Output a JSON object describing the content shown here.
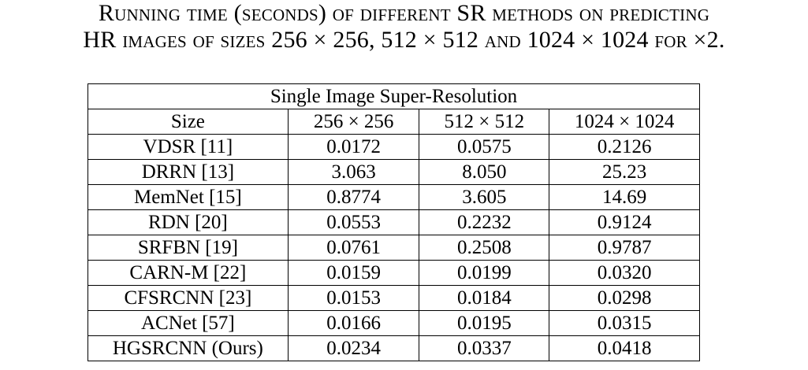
{
  "caption": {
    "line1": "Running time (seconds) of different SR methods on predicting",
    "line2": "HR images of sizes 256 × 256, 512 × 512 and 1024 × 1024 for ×2."
  },
  "table": {
    "group_header": "Single Image Super-Resolution",
    "columns": [
      "Size",
      "256 × 256",
      "512 × 512",
      "1024 × 1024"
    ],
    "rows": [
      [
        "VDSR [11]",
        "0.0172",
        "0.0575",
        "0.2126"
      ],
      [
        "DRRN [13]",
        "3.063",
        "8.050",
        "25.23"
      ],
      [
        "MemNet [15]",
        "0.8774",
        "3.605",
        "14.69"
      ],
      [
        "RDN [20]",
        "0.0553",
        "0.2232",
        "0.9124"
      ],
      [
        "SRFBN [19]",
        "0.0761",
        "0.2508",
        "0.9787"
      ],
      [
        "CARN-M [22]",
        "0.0159",
        "0.0199",
        "0.0320"
      ],
      [
        "CFSRCNN [23]",
        "0.0153",
        "0.0184",
        "0.0298"
      ],
      [
        "ACNet [57]",
        "0.0166",
        "0.0195",
        "0.0315"
      ],
      [
        "HGSRCNN (Ours)",
        "0.0234",
        "0.0337",
        "0.0418"
      ]
    ]
  }
}
